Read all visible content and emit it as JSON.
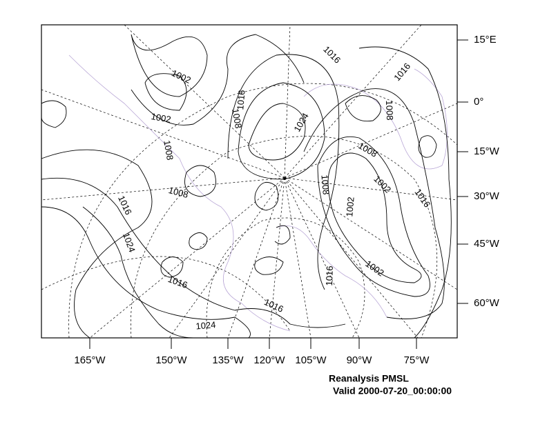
{
  "map": {
    "title": "Reanalysis PMSL",
    "subtitle": "Valid 2000-07-20_00:00:00",
    "bottom_labels": [
      "165°W",
      "150°W",
      "135°W",
      "120°W",
      "105°W",
      "90°W",
      "75°W"
    ],
    "right_labels": [
      "15°E",
      "0°",
      "15°W",
      "30°W",
      "45°W",
      "60°W"
    ],
    "contour_labels": [
      1002,
      1002,
      1008,
      1008,
      1016,
      1024,
      1016,
      1024,
      1016,
      1016,
      1002,
      1002,
      1008,
      1008,
      1016,
      1024,
      1016,
      1016,
      1008,
      1008,
      1002,
      1016
    ]
  }
}
